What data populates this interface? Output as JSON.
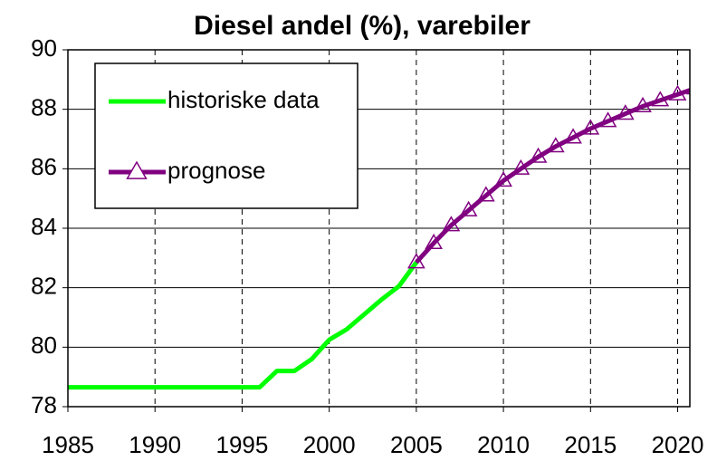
{
  "chart_data": {
    "type": "line",
    "title": "Diesel andel (%), varebiler",
    "xlim": [
      1985,
      2020.7
    ],
    "xticks": [
      1985,
      1990,
      1995,
      2000,
      2005,
      2010,
      2015,
      2020
    ],
    "ylim": [
      78,
      90
    ],
    "yticks": [
      78,
      80,
      82,
      84,
      86,
      88,
      90
    ],
    "grid": true,
    "legend": "upper left",
    "series": [
      {
        "name": "historiske data",
        "color": "#00ff00",
        "marker": null,
        "x": [
          1985,
          1986,
          1987,
          1988,
          1989,
          1990,
          1991,
          1992,
          1993,
          1994,
          1995,
          1996,
          1997,
          1998,
          1999,
          2000,
          2001,
          2002,
          2003,
          2004,
          2005
        ],
        "values": [
          78.65,
          78.65,
          78.65,
          78.65,
          78.65,
          78.65,
          78.65,
          78.65,
          78.65,
          78.65,
          78.65,
          78.65,
          79.2,
          79.2,
          79.6,
          80.25,
          80.6,
          81.1,
          81.6,
          82.05,
          82.85
        ]
      },
      {
        "name": "prognose",
        "color": "#800080",
        "marker": "triangle",
        "x": [
          2005,
          2006,
          2007,
          2008,
          2009,
          2010,
          2011,
          2012,
          2013,
          2014,
          2015,
          2016,
          2017,
          2018,
          2019,
          2020,
          2021
        ],
        "values": [
          82.85,
          83.5,
          84.1,
          84.6,
          85.1,
          85.6,
          86.0,
          86.4,
          86.75,
          87.05,
          87.35,
          87.6,
          87.85,
          88.1,
          88.3,
          88.5,
          88.7
        ]
      }
    ]
  }
}
